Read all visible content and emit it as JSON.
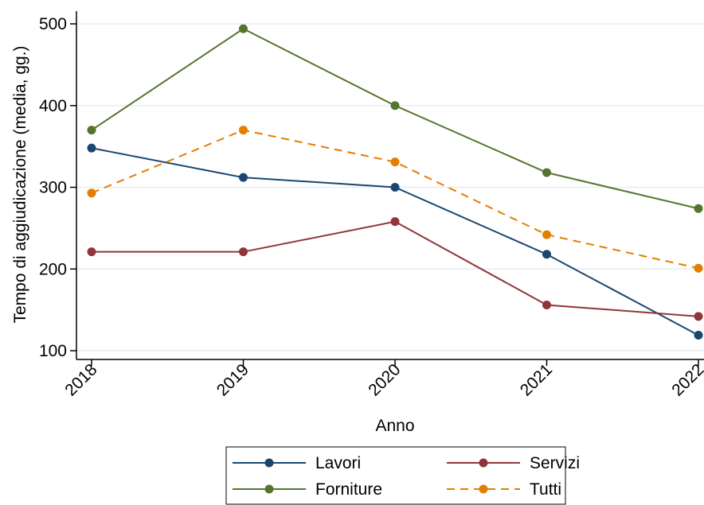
{
  "chart_data": {
    "type": "line",
    "title": "",
    "xlabel": "Anno",
    "ylabel": "Tempo di aggiudicazione (media, gg.)",
    "x": [
      2018,
      2019,
      2020,
      2021,
      2022
    ],
    "x_tick_labels": [
      "2018",
      "2019",
      "2020",
      "2021",
      "2022"
    ],
    "ylim": [
      100,
      500
    ],
    "y_ticks": [
      100,
      200,
      300,
      400,
      500
    ],
    "y_tick_labels": [
      "100",
      "200",
      "300",
      "400",
      "500"
    ],
    "grid": true,
    "legend_position": "bottom",
    "series": [
      {
        "name": "Lavori",
        "color": "#1a476f",
        "dash": false,
        "values": [
          348,
          312,
          300,
          218,
          119
        ]
      },
      {
        "name": "Servizi",
        "color": "#90353b",
        "dash": false,
        "values": [
          221,
          221,
          258,
          156,
          142
        ]
      },
      {
        "name": "Forniture",
        "color": "#55752f",
        "dash": false,
        "values": [
          370,
          494,
          400,
          318,
          274
        ]
      },
      {
        "name": "Tutti",
        "color": "#e37e00",
        "dash": true,
        "values": [
          293,
          370,
          331,
          242,
          201
        ]
      }
    ]
  }
}
